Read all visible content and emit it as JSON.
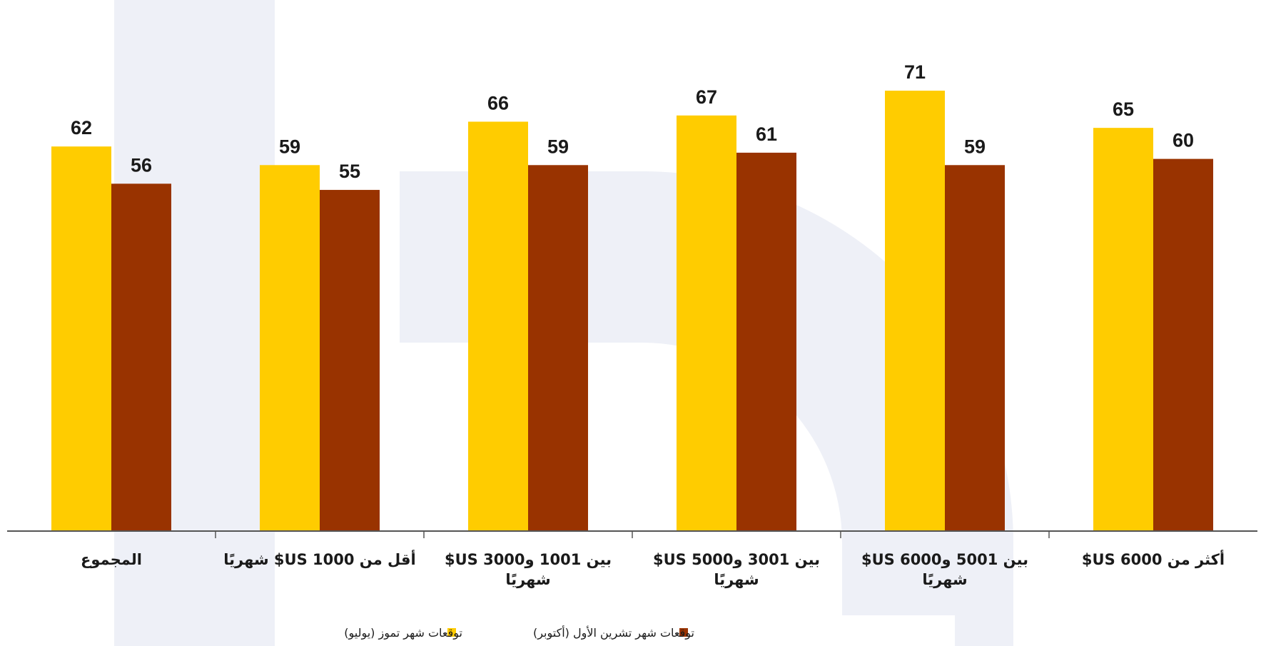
{
  "chart_data": {
    "type": "bar",
    "categories": [
      [
        "المجموع"
      ],
      [
        "أقل من 1000 US$ شهريًا"
      ],
      [
        "بين 1001 و3000 US$",
        "شهريًا"
      ],
      [
        "بين 3001 و5000 US$",
        "شهريًا"
      ],
      [
        "بين 5001 و6000 US$",
        "شهريًا"
      ],
      [
        "أكثر من 6000 US$"
      ]
    ],
    "series": [
      {
        "name": "توقعات شهر تموز (يوليو)",
        "values": [
          62,
          59,
          66,
          67,
          71,
          65
        ],
        "color": "#FFCC00"
      },
      {
        "name": "توقعات شهر تشرين الأول (أكتوبر)",
        "values": [
          56,
          55,
          59,
          61,
          59,
          60
        ],
        "color": "#993300"
      }
    ],
    "ylim": [
      0,
      75
    ],
    "grid": false,
    "legend": "bottom-center",
    "colors": {
      "axis": "#555555",
      "watermark": "#eef0f7"
    }
  }
}
